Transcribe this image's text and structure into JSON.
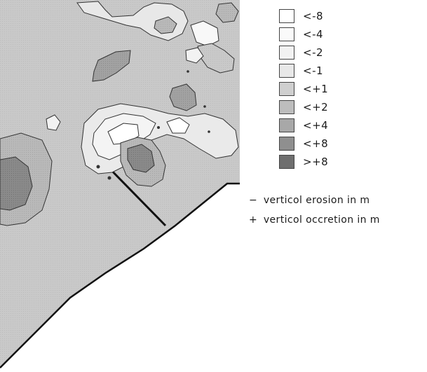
{
  "legend": {
    "items": [
      {
        "label": "<-8",
        "color": "#ffffff"
      },
      {
        "label": "<-4",
        "color": "#fafafa"
      },
      {
        "label": "<-2",
        "color": "#f2f2f2"
      },
      {
        "label": "<-1",
        "color": "#e8e8e8"
      },
      {
        "label": "<+1",
        "color": "#cfcfcf"
      },
      {
        "label": "<+2",
        "color": "#bdbdbd"
      },
      {
        "label": "<+4",
        "color": "#a8a8a8"
      },
      {
        "label": "<+8",
        "color": "#8f8f8f"
      },
      {
        "label": ">+8",
        "color": "#6e6e6e"
      }
    ]
  },
  "notes": {
    "erosion": {
      "symbol": "−",
      "text": "verticol erosion in m"
    },
    "accretion": {
      "symbol": "+",
      "text": "verticol occretion in m"
    }
  },
  "colors": {
    "sea": "#d0d0d0",
    "land": "#ffffff",
    "coastline": "#111111",
    "contour": "#333333"
  }
}
